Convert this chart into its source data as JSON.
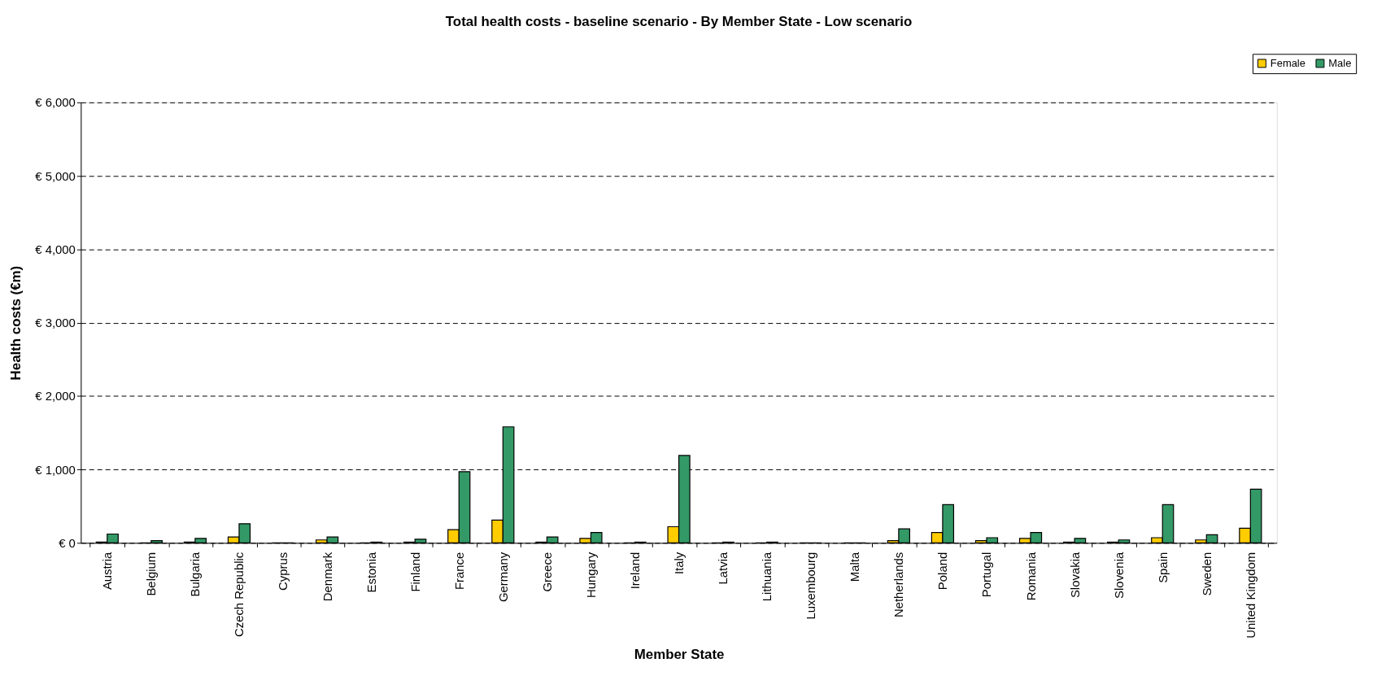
{
  "chart_data": {
    "type": "bar",
    "title": "Total health costs - baseline scenario - By Member State - Low scenario",
    "xlabel": "Member State",
    "ylabel": "Health costs (€m)",
    "categories": [
      "Austria",
      "Belgium",
      "Bulgaria",
      "Czech Republic",
      "Cyprus",
      "Denmark",
      "Estonia",
      "Finland",
      "France",
      "Germany",
      "Greece",
      "Hungary",
      "Ireland",
      "Italy",
      "Latvia",
      "Lithuania",
      "Luxembourg",
      "Malta",
      "Netherlands",
      "Poland",
      "Portugal",
      "Romania",
      "Slovakia",
      "Slovenia",
      "Spain",
      "Sweden",
      "United Kingdom"
    ],
    "series": [
      {
        "name": "Female",
        "color": "#ffcc00",
        "values": [
          10,
          0,
          10,
          80,
          0,
          40,
          0,
          10,
          180,
          310,
          10,
          60,
          0,
          220,
          0,
          0,
          0,
          0,
          30,
          140,
          30,
          60,
          10,
          10,
          70,
          40,
          200
        ]
      },
      {
        "name": "Male",
        "color": "#339966",
        "values": [
          120,
          30,
          60,
          260,
          0,
          80,
          10,
          50,
          970,
          1580,
          80,
          140,
          10,
          1190,
          10,
          10,
          0,
          0,
          190,
          520,
          70,
          140,
          60,
          40,
          520,
          110,
          730
        ]
      }
    ],
    "ylim": [
      0,
      6000
    ],
    "yticks": [
      {
        "value": 0,
        "label": "€ 0"
      },
      {
        "value": 1000,
        "label": "€ 1,000"
      },
      {
        "value": 2000,
        "label": "€ 2,000"
      },
      {
        "value": 3000,
        "label": "€ 3,000"
      },
      {
        "value": 4000,
        "label": "€ 4,000"
      },
      {
        "value": 5000,
        "label": "€ 5,000"
      },
      {
        "value": 6000,
        "label": "€ 6,000"
      }
    ],
    "grid": "y",
    "legend": "top right"
  }
}
